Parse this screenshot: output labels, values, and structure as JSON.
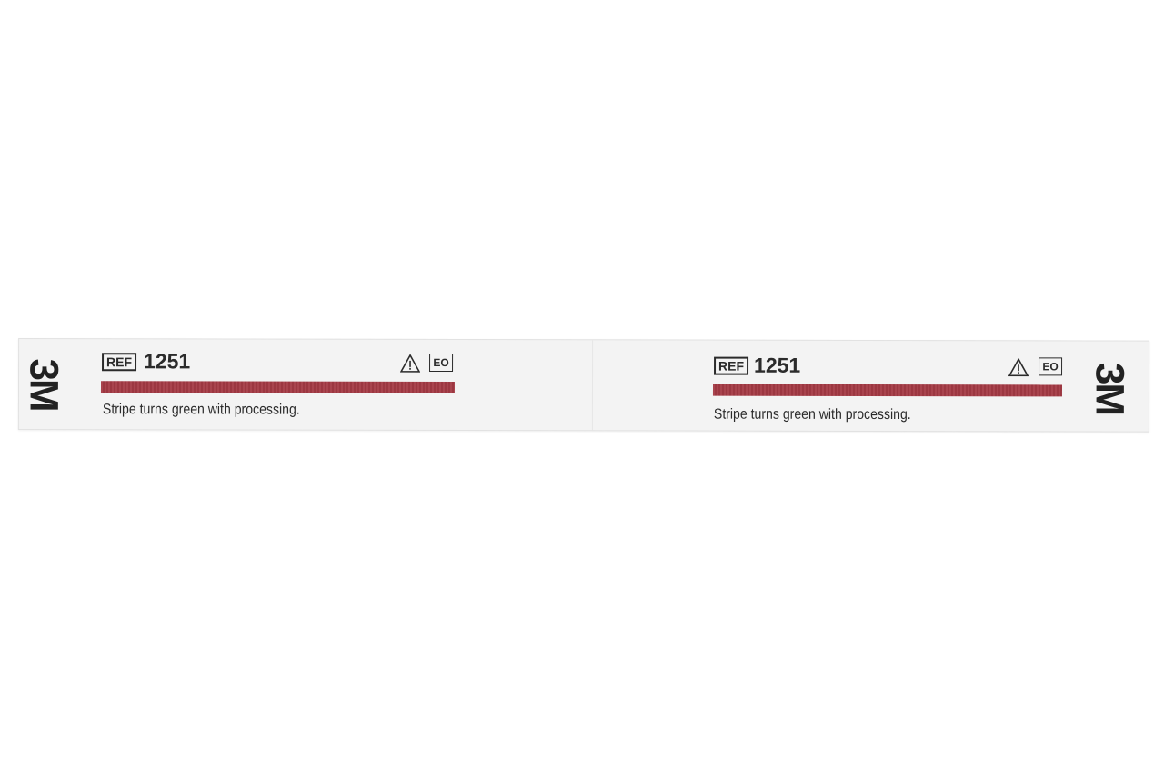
{
  "strip": {
    "brand": "3M",
    "ref_label": "REF",
    "ref_number": "1251",
    "warning_icon": "caution-triangle-icon",
    "sterilant_symbol": "EO",
    "stripe_color": "#a43a44",
    "caption": "Stripe turns green with processing."
  }
}
